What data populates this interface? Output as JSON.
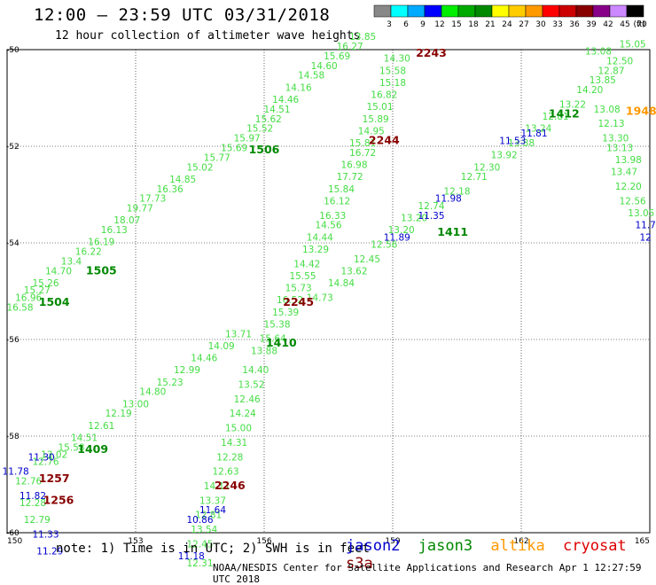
{
  "header": {
    "title": "12:00 – 23:59 UTC 03/31/2018",
    "subtitle": "12 hour collection of altimeter wave heights"
  },
  "footer": {
    "note": "note: 1) Time is in UTC; 2) SWH is in feet",
    "credit": "NOAA/NESDIS Center for Satellite Applications and Research   Apr  1 12:27:59 UTC 2018"
  },
  "satellite_legend": [
    {
      "name": "jason2",
      "color": "#0000cc"
    },
    {
      "name": "jason3",
      "color": "#008800"
    },
    {
      "name": "altika",
      "color": "#ff9900"
    },
    {
      "name": "cryosat",
      "color": "#dd0000"
    },
    {
      "name": "s3a",
      "color": "#880000"
    }
  ],
  "swh_scale": {
    "unit": "(ft)",
    "ticks": [
      "3",
      "6",
      "9",
      "12",
      "15",
      "18",
      "21",
      "24",
      "27",
      "30",
      "33",
      "36",
      "39",
      "42",
      "45",
      "70"
    ],
    "colors": [
      "#888888",
      "#00ffff",
      "#00aaff",
      "#0000ff",
      "#00ee00",
      "#00aa00",
      "#008800",
      "#ffff00",
      "#ffcc00",
      "#ff9900",
      "#ff0000",
      "#cc0000",
      "#880000",
      "#880088",
      "#cc88ff",
      "#000000"
    ]
  },
  "chart_data": {
    "type": "scatter",
    "title": "12:00 – 23:59 UTC 03/31/2018",
    "xlabel": "",
    "ylabel": "",
    "xlim": [
      150,
      165
    ],
    "ylim": [
      -60,
      -50
    ],
    "x_ticks": [
      "150",
      "153",
      "156",
      "159",
      "162",
      "165"
    ],
    "y_ticks": [
      "-50",
      "-52",
      "-54",
      "-56",
      "-58",
      "-60"
    ],
    "grid": true,
    "track_times": [
      {
        "label": "2243",
        "lon": 159.9,
        "lat": -50.15,
        "color": "#880000"
      },
      {
        "label": "2244",
        "lon": 158.8,
        "lat": -51.95,
        "color": "#880000"
      },
      {
        "label": "2245",
        "lon": 156.8,
        "lat": -55.3,
        "color": "#880000"
      },
      {
        "label": "2246",
        "lon": 155.2,
        "lat": -59.1,
        "color": "#880000"
      },
      {
        "label": "1256",
        "lon": 151.2,
        "lat": -59.4,
        "color": "#880000"
      },
      {
        "label": "1257",
        "lon": 151.1,
        "lat": -58.95,
        "color": "#880000"
      },
      {
        "label": "1948",
        "lon": 164.8,
        "lat": -51.35,
        "color": "#ff9900"
      },
      {
        "label": "1506",
        "lon": 156.0,
        "lat": -52.15,
        "color": "#008800"
      },
      {
        "label": "1505",
        "lon": 152.2,
        "lat": -54.65,
        "color": "#008800"
      },
      {
        "label": "1504",
        "lon": 151.1,
        "lat": -55.3,
        "color": "#008800"
      },
      {
        "label": "1410",
        "lon": 156.4,
        "lat": -56.15,
        "color": "#008800"
      },
      {
        "label": "1409",
        "lon": 152.0,
        "lat": -58.35,
        "color": "#008800"
      },
      {
        "label": "1411",
        "lon": 160.4,
        "lat": -53.85,
        "color": "#008800"
      },
      {
        "label": "1412",
        "lon": 163.0,
        "lat": -51.4,
        "color": "#008800"
      }
    ],
    "series": [
      {
        "name": "jason3",
        "color": "#44dd44",
        "points": [
          {
            "lon": 150.3,
            "lat": -55.4,
            "swh": "16.58"
          },
          {
            "lon": 150.5,
            "lat": -55.2,
            "swh": "16.96"
          },
          {
            "lon": 150.7,
            "lat": -55.05,
            "swh": "15.27"
          },
          {
            "lon": 150.9,
            "lat": -54.9,
            "swh": "15.26"
          },
          {
            "lon": 151.2,
            "lat": -54.65,
            "swh": "14.70"
          },
          {
            "lon": 151.5,
            "lat": -54.45,
            "swh": "13.4"
          },
          {
            "lon": 151.9,
            "lat": -54.25,
            "swh": "16.22"
          },
          {
            "lon": 152.2,
            "lat": -54.05,
            "swh": "16.19"
          },
          {
            "lon": 152.5,
            "lat": -53.8,
            "swh": "16.13"
          },
          {
            "lon": 152.8,
            "lat": -53.6,
            "swh": "18.07"
          },
          {
            "lon": 153.1,
            "lat": -53.35,
            "swh": "19.77"
          },
          {
            "lon": 153.4,
            "lat": -53.15,
            "swh": "17.73"
          },
          {
            "lon": 153.8,
            "lat": -52.95,
            "swh": "16.36"
          },
          {
            "lon": 154.1,
            "lat": -52.75,
            "swh": "14.85"
          },
          {
            "lon": 154.5,
            "lat": -52.5,
            "swh": "15.02"
          },
          {
            "lon": 154.9,
            "lat": -52.3,
            "swh": "15.77"
          },
          {
            "lon": 155.3,
            "lat": -52.1,
            "swh": "15.69"
          },
          {
            "lon": 155.6,
            "lat": -51.9,
            "swh": "15.97"
          },
          {
            "lon": 155.9,
            "lat": -51.7,
            "swh": "15.52"
          },
          {
            "lon": 156.1,
            "lat": -51.5,
            "swh": "15.62"
          },
          {
            "lon": 156.3,
            "lat": -51.3,
            "swh": "14.51"
          },
          {
            "lon": 156.5,
            "lat": -51.1,
            "swh": "14.46"
          },
          {
            "lon": 156.8,
            "lat": -50.85,
            "swh": "14.16"
          },
          {
            "lon": 157.1,
            "lat": -50.6,
            "swh": "14.58"
          },
          {
            "lon": 157.4,
            "lat": -50.4,
            "swh": "14.60"
          },
          {
            "lon": 157.7,
            "lat": -50.2,
            "swh": "15.69"
          },
          {
            "lon": 158.0,
            "lat": -50.0,
            "swh": "16.27"
          },
          {
            "lon": 158.3,
            "lat": -49.8,
            "swh": "13.85"
          },
          {
            "lon": 159.1,
            "lat": -50.25,
            "swh": "14.30"
          },
          {
            "lon": 159.0,
            "lat": -50.5,
            "swh": "15.58"
          },
          {
            "lon": 159.0,
            "lat": -50.75,
            "swh": "15.18"
          },
          {
            "lon": 158.8,
            "lat": -51.0,
            "swh": "16.82"
          },
          {
            "lon": 158.7,
            "lat": -51.25,
            "swh": "15.01"
          },
          {
            "lon": 158.6,
            "lat": -51.5,
            "swh": "15.89"
          },
          {
            "lon": 158.5,
            "lat": -51.75,
            "swh": "14.95"
          },
          {
            "lon": 158.3,
            "lat": -52.0,
            "swh": "15.81"
          },
          {
            "lon": 158.3,
            "lat": -52.2,
            "swh": "16.72"
          },
          {
            "lon": 158.1,
            "lat": -52.45,
            "swh": "16.98"
          },
          {
            "lon": 158.0,
            "lat": -52.7,
            "swh": "17.72"
          },
          {
            "lon": 157.8,
            "lat": -52.95,
            "swh": "15.84"
          },
          {
            "lon": 157.7,
            "lat": -53.2,
            "swh": "16.12"
          },
          {
            "lon": 157.6,
            "lat": -53.5,
            "swh": "16.33"
          },
          {
            "lon": 157.5,
            "lat": -53.7,
            "swh": "14.56"
          },
          {
            "lon": 157.3,
            "lat": -53.95,
            "swh": "14.44"
          },
          {
            "lon": 157.2,
            "lat": -54.2,
            "swh": "13.29"
          },
          {
            "lon": 157.0,
            "lat": -54.5,
            "swh": "14.42"
          },
          {
            "lon": 156.9,
            "lat": -54.75,
            "swh": "15.55"
          },
          {
            "lon": 156.8,
            "lat": -55.0,
            "swh": "15.73"
          },
          {
            "lon": 156.6,
            "lat": -55.25,
            "swh": "16.52"
          },
          {
            "lon": 156.5,
            "lat": -55.5,
            "swh": "15.39"
          },
          {
            "lon": 156.3,
            "lat": -55.75,
            "swh": "15.38"
          },
          {
            "lon": 156.2,
            "lat": -56.05,
            "swh": "15.64"
          },
          {
            "lon": 156.0,
            "lat": -56.3,
            "swh": "13.88"
          },
          {
            "lon": 155.8,
            "lat": -56.7,
            "swh": "14.40"
          },
          {
            "lon": 155.7,
            "lat": -57.0,
            "swh": "13.52"
          },
          {
            "lon": 155.6,
            "lat": -57.3,
            "swh": "12.46"
          },
          {
            "lon": 155.5,
            "lat": -57.6,
            "swh": "14.24"
          },
          {
            "lon": 155.4,
            "lat": -57.9,
            "swh": "15.00"
          },
          {
            "lon": 155.3,
            "lat": -58.2,
            "swh": "14.31"
          },
          {
            "lon": 155.2,
            "lat": -58.5,
            "swh": "12.28"
          },
          {
            "lon": 155.1,
            "lat": -58.8,
            "swh": "12.63"
          },
          {
            "lon": 154.9,
            "lat": -59.1,
            "swh": "14.11"
          },
          {
            "lon": 154.8,
            "lat": -59.4,
            "swh": "13.37"
          },
          {
            "lon": 154.7,
            "lat": -59.7,
            "swh": "12.81"
          },
          {
            "lon": 154.6,
            "lat": -60.0,
            "swh": "13.54"
          },
          {
            "lon": 154.5,
            "lat": -60.3,
            "swh": "12.45"
          },
          {
            "lon": 151.5,
            "lat": -58.3,
            "swh": "15.58"
          },
          {
            "lon": 151.8,
            "lat": -58.1,
            "swh": "14.51"
          },
          {
            "lon": 152.2,
            "lat": -57.85,
            "swh": "12.61"
          },
          {
            "lon": 152.6,
            "lat": -57.6,
            "swh": "12.19"
          },
          {
            "lon": 153.0,
            "lat": -57.4,
            "swh": "13.00"
          },
          {
            "lon": 153.4,
            "lat": -57.15,
            "swh": "14.80"
          },
          {
            "lon": 153.8,
            "lat": -56.95,
            "swh": "15.23"
          },
          {
            "lon": 154.2,
            "lat": -56.7,
            "swh": "12.99"
          },
          {
            "lon": 154.6,
            "lat": -56.45,
            "swh": "14.46"
          },
          {
            "lon": 155.0,
            "lat": -56.2,
            "swh": "14.09"
          },
          {
            "lon": 155.4,
            "lat": -55.95,
            "swh": "13.71"
          },
          {
            "lon": 157.3,
            "lat": -55.2,
            "swh": "14.73"
          },
          {
            "lon": 157.8,
            "lat": -54.9,
            "swh": "14.84"
          },
          {
            "lon": 158.1,
            "lat": -54.65,
            "swh": "13.62"
          },
          {
            "lon": 158.4,
            "lat": -54.4,
            "swh": "12.45"
          },
          {
            "lon": 158.8,
            "lat": -54.1,
            "swh": "12.56"
          },
          {
            "lon": 159.2,
            "lat": -53.8,
            "swh": "13.20"
          },
          {
            "lon": 159.5,
            "lat": -53.55,
            "swh": "13.20"
          },
          {
            "lon": 159.9,
            "lat": -53.3,
            "swh": "12.74"
          },
          {
            "lon": 160.5,
            "lat": -53.0,
            "swh": "12.18"
          },
          {
            "lon": 160.9,
            "lat": -52.7,
            "swh": "12.71"
          },
          {
            "lon": 161.2,
            "lat": -52.5,
            "swh": "12.30"
          },
          {
            "lon": 161.6,
            "lat": -52.25,
            "swh": "13.92"
          },
          {
            "lon": 162.0,
            "lat": -52.0,
            "swh": "13.88"
          },
          {
            "lon": 162.4,
            "lat": -51.7,
            "swh": "13.24"
          },
          {
            "lon": 162.8,
            "lat": -51.45,
            "swh": "12.81"
          },
          {
            "lon": 163.2,
            "lat": -51.2,
            "swh": "13.22"
          },
          {
            "lon": 163.6,
            "lat": -50.9,
            "swh": "14.20"
          },
          {
            "lon": 163.9,
            "lat": -50.7,
            "swh": "13.85"
          },
          {
            "lon": 164.1,
            "lat": -50.5,
            "swh": "12.87"
          },
          {
            "lon": 164.3,
            "lat": -50.3,
            "swh": "12.50"
          },
          {
            "lon": 163.8,
            "lat": -50.1,
            "swh": "13.08"
          },
          {
            "lon": 164.6,
            "lat": -49.95,
            "swh": "15.05"
          },
          {
            "lon": 164.0,
            "lat": -51.3,
            "swh": "13.08"
          },
          {
            "lon": 164.1,
            "lat": -51.6,
            "swh": "12.13"
          },
          {
            "lon": 164.2,
            "lat": -51.9,
            "swh": "13.30"
          },
          {
            "lon": 164.3,
            "lat": -52.1,
            "swh": "13.13"
          },
          {
            "lon": 164.5,
            "lat": -52.35,
            "swh": "13.98"
          },
          {
            "lon": 164.4,
            "lat": -52.6,
            "swh": "13.47"
          },
          {
            "lon": 164.5,
            "lat": -52.9,
            "swh": "12.20"
          },
          {
            "lon": 164.6,
            "lat": -53.2,
            "swh": "12.56"
          },
          {
            "lon": 164.8,
            "lat": -53.45,
            "swh": "13.05"
          },
          {
            "lon": 150.5,
            "lat": -59.0,
            "swh": "12.76"
          },
          {
            "lon": 150.6,
            "lat": -59.45,
            "swh": "12.28"
          },
          {
            "lon": 150.7,
            "lat": -59.8,
            "swh": "12.79"
          },
          {
            "lon": 150.9,
            "lat": -58.6,
            "swh": "12.76"
          },
          {
            "lon": 151.1,
            "lat": -58.45,
            "swh": "13.02"
          },
          {
            "lon": 154.5,
            "lat": -60.7,
            "swh": "12.31"
          }
        ]
      },
      {
        "name": "jason2",
        "color": "#0000cc",
        "points": [
          {
            "lon": 150.2,
            "lat": -58.8,
            "swh": "11.78"
          },
          {
            "lon": 150.8,
            "lat": -58.5,
            "swh": "11.30"
          },
          {
            "lon": 150.6,
            "lat": -59.3,
            "swh": "11.82"
          },
          {
            "lon": 150.9,
            "lat": -60.1,
            "swh": "11.33"
          },
          {
            "lon": 151.0,
            "lat": -60.45,
            "swh": "11.29"
          },
          {
            "lon": 154.3,
            "lat": -60.55,
            "swh": "11.18"
          },
          {
            "lon": 154.5,
            "lat": -59.8,
            "swh": "10.86"
          },
          {
            "lon": 154.8,
            "lat": -59.6,
            "swh": "11.64"
          },
          {
            "lon": 159.1,
            "lat": -53.95,
            "swh": "11.89"
          },
          {
            "lon": 159.9,
            "lat": -53.5,
            "swh": "11.35"
          },
          {
            "lon": 160.3,
            "lat": -53.15,
            "swh": "11.98"
          },
          {
            "lon": 161.8,
            "lat": -51.95,
            "swh": "11.53"
          },
          {
            "lon": 162.3,
            "lat": -51.8,
            "swh": "11.81"
          },
          {
            "lon": 164.9,
            "lat": -53.7,
            "swh": "11.7"
          },
          {
            "lon": 164.9,
            "lat": -53.95,
            "swh": "12"
          }
        ]
      }
    ]
  }
}
